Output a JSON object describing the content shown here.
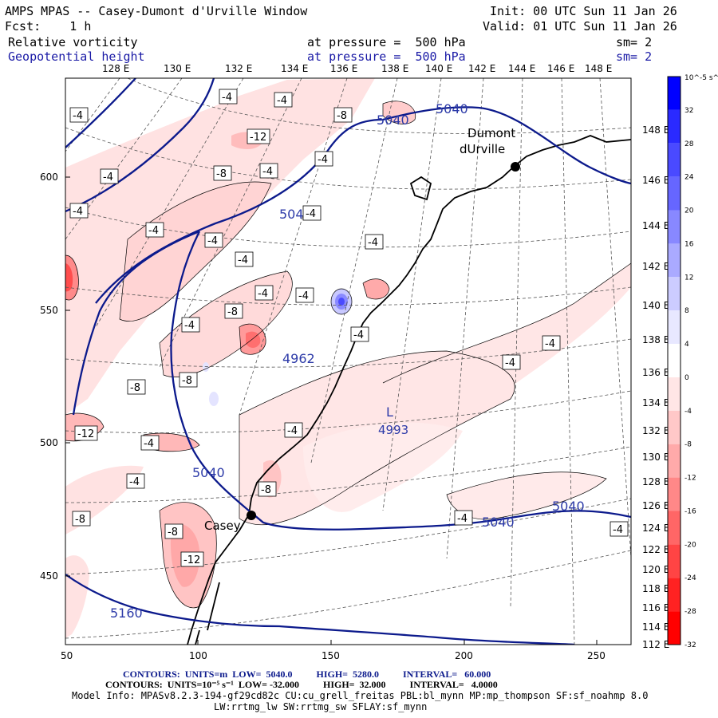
{
  "header": {
    "title": "AMPS MPAS -- Casey-Dumont d'Urville Window",
    "init": "Init: 00 UTC Sun 11 Jan 26",
    "fcst": "Fcst:    1 h",
    "valid": "Valid: 01 UTC Sun 11 Jan 26",
    "field1": {
      "name": "Relative vorticity",
      "level": "at pressure =  500 hPa",
      "sm": "sm= 2"
    },
    "field2": {
      "name": "Geopotential height",
      "level": "at pressure =  500 hPa",
      "sm": "sm= 2"
    }
  },
  "axes": {
    "top_lon_labels": [
      "128 E",
      "130 E",
      "132 E",
      "134 E",
      "136 E",
      "138 E",
      "140 E",
      "142 E",
      "144 E",
      "146 E",
      "148 E"
    ],
    "right_lon_labels": [
      "148 E",
      "146 E",
      "144 E",
      "142 E",
      "140 E",
      "138 E",
      "136 E",
      "134 E",
      "132 E",
      "130 E",
      "128 E",
      "126 E",
      "124 E",
      "122 E",
      "120 E",
      "118 E",
      "116 E",
      "114 E",
      "112 E"
    ],
    "left_y_labels": [
      "600",
      "550",
      "500",
      "450"
    ],
    "bottom_x_labels": [
      "50",
      "100",
      "150",
      "200",
      "250"
    ]
  },
  "colorbar": {
    "unit": "10^-5 s^-1",
    "labels": [
      "32",
      "28",
      "24",
      "20",
      "16",
      "12",
      "8",
      "4",
      "0",
      "-4",
      "-8",
      "-12",
      "-16",
      "-20",
      "-24",
      "-28",
      "-32"
    ],
    "colors": [
      "#0000ff",
      "#2a2aff",
      "#4a4aff",
      "#6666ff",
      "#8888ff",
      "#aaaaff",
      "#ccccff",
      "#e8e8ff",
      "#ffffff",
      "#ffe6e6",
      "#ffc8c8",
      "#ffaaaa",
      "#ff8888",
      "#ff6666",
      "#ff4444",
      "#ff2222",
      "#ff0000"
    ]
  },
  "stations": [
    {
      "name_line1": "Dumont",
      "name_line2": "dUrville"
    },
    {
      "name_line1": "Casey"
    }
  ],
  "pressure_systems": [
    {
      "symbol": "L",
      "value": "4993"
    }
  ],
  "height_labels": [
    "5040",
    "5040",
    "5040",
    "5040",
    "5040",
    "5040",
    "4962",
    "5160"
  ],
  "vorticity_labels": [
    "-4",
    "-4",
    "-4",
    "-4",
    "-12",
    "-8",
    "-4",
    "-8",
    "-4",
    "-4",
    "-4",
    "-4",
    "-4",
    "-4",
    "-4",
    "-8",
    "-4",
    "-4",
    "-4",
    "-8",
    "-4",
    "-8",
    "-12",
    "-4",
    "-4",
    "-8",
    "-8",
    "-8",
    "-4",
    "-12",
    "-4",
    "-4",
    "-4",
    "-4"
  ],
  "footer": {
    "line1_label": "CONTOURS:  UNITS=m  LOW=  5040.0          HIGH=  5280.0          INTERVAL=   60.000",
    "line2_label": "CONTOURS:  UNITS=10⁻⁵ s⁻¹  LOW= -32.000          HIGH=  32.000          INTERVAL=   4.0000",
    "line3": "Model Info: MPASv8.2.3-194-gf29cd82c CU:cu_grell_freitas PBL:bl_mynn MP:mp_thompson SF:sf_noahmp 8.0",
    "line4": "LW:rrtmg_lw SW:rrtmg_sw SFLAY:sf_mynn"
  }
}
